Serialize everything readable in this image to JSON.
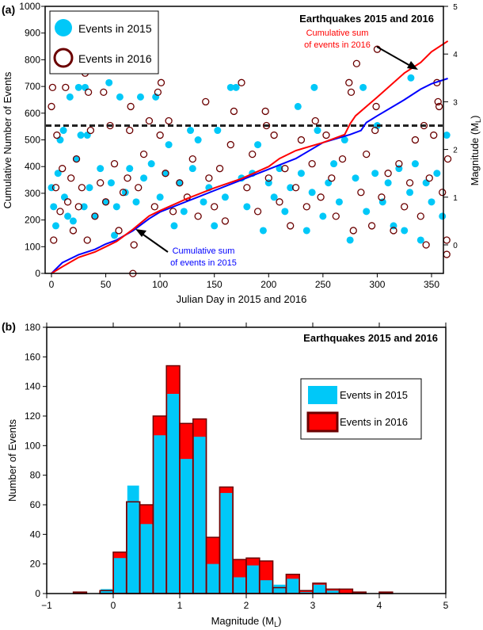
{
  "chart_data": [
    {
      "panel_label": "(a)",
      "type": "scatter",
      "title": "Earthquakes 2015 and 2016",
      "xlabel": "Julian Day in 2015 and 2016",
      "ylabel": "Cumulative Number of Events",
      "y2label": "Magnitude (M",
      "y2label_sub": "L",
      "y2label_end": ")",
      "xlim": [
        -5,
        368
      ],
      "xticks": [
        0,
        50,
        100,
        150,
        200,
        250,
        300,
        350
      ],
      "ylim": [
        0,
        1000
      ],
      "yticks": [
        0,
        100,
        200,
        300,
        400,
        500,
        600,
        700,
        800,
        900,
        1000
      ],
      "y2lim": [
        -0.6,
        5
      ],
      "y2ticks": [
        0,
        1,
        2,
        3,
        4,
        5
      ],
      "legend": {
        "position": "top-left",
        "entries": [
          "Events in 2015",
          "Events in 2016"
        ]
      },
      "threshold_magnitude": 2.5,
      "colors": {
        "2015": "#00c8f8",
        "2016": "#6b0000",
        "cum2015": "#0000ff",
        "cum2016": "#ff0000",
        "threshold": "#222222"
      },
      "annotations": {
        "cum2016": [
          "Cumulative sum",
          "of events in 2016"
        ],
        "cum2015": [
          "Cumulative sum",
          "of events in 2015"
        ]
      },
      "cumulative": {
        "2015": {
          "x": [
            0,
            10,
            25,
            40,
            50,
            60,
            75,
            90,
            100,
            125,
            150,
            175,
            200,
            225,
            250,
            275,
            285,
            290,
            300,
            325,
            340,
            350,
            365
          ],
          "y": [
            0,
            40,
            70,
            90,
            110,
            125,
            160,
            205,
            230,
            270,
            310,
            350,
            390,
            430,
            490,
            520,
            535,
            565,
            590,
            650,
            690,
            710,
            730
          ]
        },
        "2016": {
          "x": [
            0,
            10,
            25,
            40,
            50,
            60,
            75,
            90,
            100,
            125,
            150,
            175,
            200,
            210,
            225,
            250,
            270,
            275,
            280,
            300,
            325,
            340,
            350,
            365
          ],
          "y": [
            0,
            25,
            60,
            80,
            100,
            120,
            165,
            215,
            235,
            280,
            320,
            355,
            400,
            430,
            460,
            490,
            520,
            560,
            590,
            660,
            750,
            790,
            830,
            870
          ]
        }
      },
      "series": [
        {
          "name": "Events in 2015",
          "points": [
            [
              0,
              1.2
            ],
            [
              2,
              0.8
            ],
            [
              4,
              0.4
            ],
            [
              6,
              1.5
            ],
            [
              8,
              2.2
            ],
            [
              11,
              2.4
            ],
            [
              12,
              1.0
            ],
            [
              15,
              0.6
            ],
            [
              17,
              3.1
            ],
            [
              20,
              0.5
            ],
            [
              23,
              1.8
            ],
            [
              25,
              3.3
            ],
            [
              27,
              2.3
            ],
            [
              30,
              0.8
            ],
            [
              31,
              3.3
            ],
            [
              33,
              2.3
            ],
            [
              35,
              1.2
            ],
            [
              40,
              0.6
            ],
            [
              45,
              1.6
            ],
            [
              50,
              0.9
            ],
            [
              53,
              3.4
            ],
            [
              55,
              1.3
            ],
            [
              58,
              0.2
            ],
            [
              60,
              0.8
            ],
            [
              63,
              3.1
            ],
            [
              68,
              1.1
            ],
            [
              72,
              1.6
            ],
            [
              78,
              0.9
            ],
            [
              82,
              3.1
            ],
            [
              85,
              1.4
            ],
            [
              92,
              1.7
            ],
            [
              96,
              3.1
            ],
            [
              100,
              1.0
            ],
            [
              105,
              1.5
            ],
            [
              108,
              2.1
            ],
            [
              113,
              0.4
            ],
            [
              118,
              1.3
            ],
            [
              122,
              0.7
            ],
            [
              128,
              2.4
            ],
            [
              130,
              1.6
            ],
            [
              135,
              2.2
            ],
            [
              140,
              0.9
            ],
            [
              145,
              1.2
            ],
            [
              150,
              0.4
            ],
            [
              153,
              2.4
            ],
            [
              160,
              1.0
            ],
            [
              165,
              3.3
            ],
            [
              170,
              3.3
            ],
            [
              175,
              1.4
            ],
            [
              180,
              0.8
            ],
            [
              185,
              1.5
            ],
            [
              190,
              2.1
            ],
            [
              195,
              0.3
            ],
            [
              200,
              1.3
            ],
            [
              205,
              1.0
            ],
            [
              210,
              1.6
            ],
            [
              215,
              0.7
            ],
            [
              220,
              1.2
            ],
            [
              227,
              2.9
            ],
            [
              230,
              1.5
            ],
            [
              235,
              0.3
            ],
            [
              240,
              1.1
            ],
            [
              242,
              3.3
            ],
            [
              245,
              2.4
            ],
            [
              250,
              0.6
            ],
            [
              255,
              1.3
            ],
            [
              260,
              1.7
            ],
            [
              265,
              0.9
            ],
            [
              270,
              2.2
            ],
            [
              275,
              0.1
            ],
            [
              280,
              1.4
            ],
            [
              287,
              3.3
            ],
            [
              290,
              0.7
            ],
            [
              298,
              1.5
            ],
            [
              300,
              2.5
            ],
            [
              305,
              0.9
            ],
            [
              310,
              1.3
            ],
            [
              315,
              0.4
            ],
            [
              320,
              1.6
            ],
            [
              325,
              0.3
            ],
            [
              330,
              1.1
            ],
            [
              331,
              3.5
            ],
            [
              335,
              1.7
            ],
            [
              340,
              0.1
            ],
            [
              345,
              1.3
            ],
            [
              350,
              0.9
            ],
            [
              355,
              1.5
            ],
            [
              360,
              0.6
            ],
            [
              364,
              2.3
            ]
          ]
        },
        {
          "name": "Events in 2016",
          "points": [
            [
              0,
              2.9
            ],
            [
              1,
              3.3
            ],
            [
              2,
              0.1
            ],
            [
              4,
              1.2
            ],
            [
              5,
              2.3
            ],
            [
              8,
              0.7
            ],
            [
              10,
              1.6
            ],
            [
              13,
              3.3
            ],
            [
              15,
              0.9
            ],
            [
              18,
              1.4
            ],
            [
              20,
              0.3
            ],
            [
              23,
              1.8
            ],
            [
              25,
              0.8
            ],
            [
              28,
              1.2
            ],
            [
              31,
              3.6
            ],
            [
              33,
              0.1
            ],
            [
              34,
              3.2
            ],
            [
              36,
              2.4
            ],
            [
              40,
              0.6
            ],
            [
              45,
              1.3
            ],
            [
              48,
              3.2
            ],
            [
              50,
              0.9
            ],
            [
              54,
              2.5
            ],
            [
              58,
              1.7
            ],
            [
              62,
              0.3
            ],
            [
              66,
              1.1
            ],
            [
              70,
              1.4
            ],
            [
              72,
              2.4
            ],
            [
              73,
              2.9
            ],
            [
              75,
              -0.6
            ],
            [
              76,
              0.0
            ],
            [
              80,
              1.2
            ],
            [
              85,
              1.9
            ],
            [
              90,
              2.6
            ],
            [
              95,
              0.8
            ],
            [
              98,
              3.2
            ],
            [
              100,
              2.3
            ],
            [
              101,
              3.4
            ],
            [
              105,
              1.5
            ],
            [
              108,
              2.6
            ],
            [
              112,
              0.7
            ],
            [
              118,
              1.3
            ],
            [
              125,
              1.0
            ],
            [
              130,
              1.8
            ],
            [
              135,
              0.6
            ],
            [
              142,
              3.0
            ],
            [
              145,
              1.4
            ],
            [
              150,
              0.8
            ],
            [
              155,
              1.6
            ],
            [
              160,
              0.5
            ],
            [
              165,
              2.1
            ],
            [
              168,
              2.8
            ],
            [
              175,
              3.4
            ],
            [
              180,
              1.2
            ],
            [
              185,
              1.9
            ],
            [
              190,
              0.7
            ],
            [
              197,
              2.8
            ],
            [
              198,
              2.5
            ],
            [
              200,
              1.4
            ],
            [
              205,
              2.3
            ],
            [
              210,
              0.9
            ],
            [
              215,
              1.6
            ],
            [
              220,
              0.4
            ],
            [
              225,
              1.2
            ],
            [
              230,
              2.2
            ],
            [
              235,
              0.8
            ],
            [
              240,
              1.7
            ],
            [
              243,
              2.6
            ],
            [
              248,
              1.0
            ],
            [
              253,
              2.3
            ],
            [
              258,
              1.4
            ],
            [
              262,
              0.6
            ],
            [
              268,
              1.8
            ],
            [
              274,
              3.4
            ],
            [
              276,
              3.2
            ],
            [
              278,
              0.3
            ],
            [
              281,
              3.8
            ],
            [
              285,
              1.1
            ],
            [
              290,
              1.9
            ],
            [
              295,
              0.4
            ],
            [
              298,
              2.4
            ],
            [
              299,
              2.9
            ],
            [
              300,
              4.1
            ],
            [
              304,
              1.0
            ],
            [
              310,
              1.5
            ],
            [
              315,
              0.3
            ],
            [
              320,
              1.7
            ],
            [
              325,
              0.8
            ],
            [
              330,
              1.3
            ],
            [
              335,
              2.2
            ],
            [
              340,
              0.6
            ],
            [
              343,
              2.5
            ],
            [
              345,
              0.0
            ],
            [
              348,
              1.4
            ],
            [
              352,
              2.3
            ],
            [
              355,
              3.4
            ],
            [
              356,
              3.0
            ],
            [
              357,
              2.9
            ],
            [
              360,
              1.1
            ],
            [
              364,
              -0.2
            ],
            [
              364,
              0.1
            ],
            [
              365,
              1.8
            ]
          ]
        }
      ]
    },
    {
      "panel_label": "(b)",
      "type": "bar",
      "title": "Earthquakes 2015 and 2016",
      "xlabel": "Magnitude (M",
      "xlabel_sub": "L",
      "xlabel_end": ")",
      "ylabel": "Number of Events",
      "xlim": [
        -1,
        5
      ],
      "xticks": [
        -1,
        0,
        1,
        2,
        3,
        4,
        5
      ],
      "ylim": [
        0,
        180
      ],
      "yticks": [
        0,
        20,
        40,
        60,
        80,
        100,
        120,
        140,
        160,
        180
      ],
      "legend": {
        "position": "right",
        "entries": [
          "Events in 2015",
          "Events in 2016"
        ]
      },
      "bin_width": 0.2,
      "bin_starts": [
        -0.6,
        -0.4,
        -0.2,
        0.0,
        0.2,
        0.4,
        0.6,
        0.8,
        1.0,
        1.2,
        1.4,
        1.6,
        1.8,
        2.0,
        2.2,
        2.4,
        2.6,
        2.8,
        3.0,
        3.2,
        3.4,
        3.6,
        3.8,
        4.0
      ],
      "series": [
        {
          "name": "Events in 2015",
          "color": "#00c8f8",
          "values": [
            0,
            0,
            3,
            24,
            73,
            47,
            107,
            135,
            91,
            106,
            20,
            68,
            11,
            19,
            9,
            6,
            10,
            1,
            6,
            2,
            0,
            0,
            0,
            0
          ]
        },
        {
          "name": "Events in 2016",
          "color": "#ff0000",
          "values": [
            1,
            0,
            2,
            28,
            62,
            60,
            120,
            154,
            115,
            118,
            38,
            72,
            23,
            24,
            22,
            4,
            13,
            2,
            7,
            3,
            3,
            1,
            0,
            1
          ]
        }
      ]
    }
  ]
}
